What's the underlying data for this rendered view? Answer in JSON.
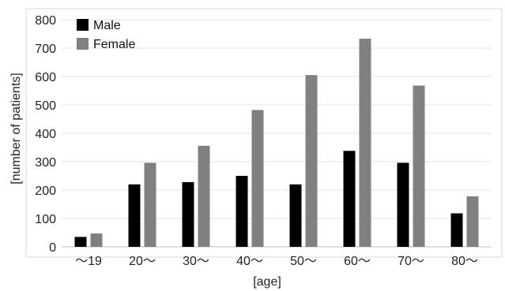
{
  "chart_data": {
    "type": "bar",
    "categories": [
      "～19",
      "20～",
      "30～",
      "40～",
      "50～",
      "60～",
      "70～",
      "80～"
    ],
    "series": [
      {
        "name": "Male",
        "values": [
          35,
          220,
          228,
          250,
          220,
          338,
          296,
          118
        ],
        "color": "#000000"
      },
      {
        "name": "Female",
        "values": [
          47,
          296,
          356,
          482,
          605,
          733,
          568,
          178
        ],
        "color": "#808080"
      }
    ],
    "xlabel": "[age]",
    "ylabel": "[number of patients]",
    "ylim": [
      0,
      800
    ],
    "yticks": [
      0,
      100,
      200,
      300,
      400,
      500,
      600,
      700,
      800
    ],
    "grid": true,
    "legend_position": "top-left"
  }
}
